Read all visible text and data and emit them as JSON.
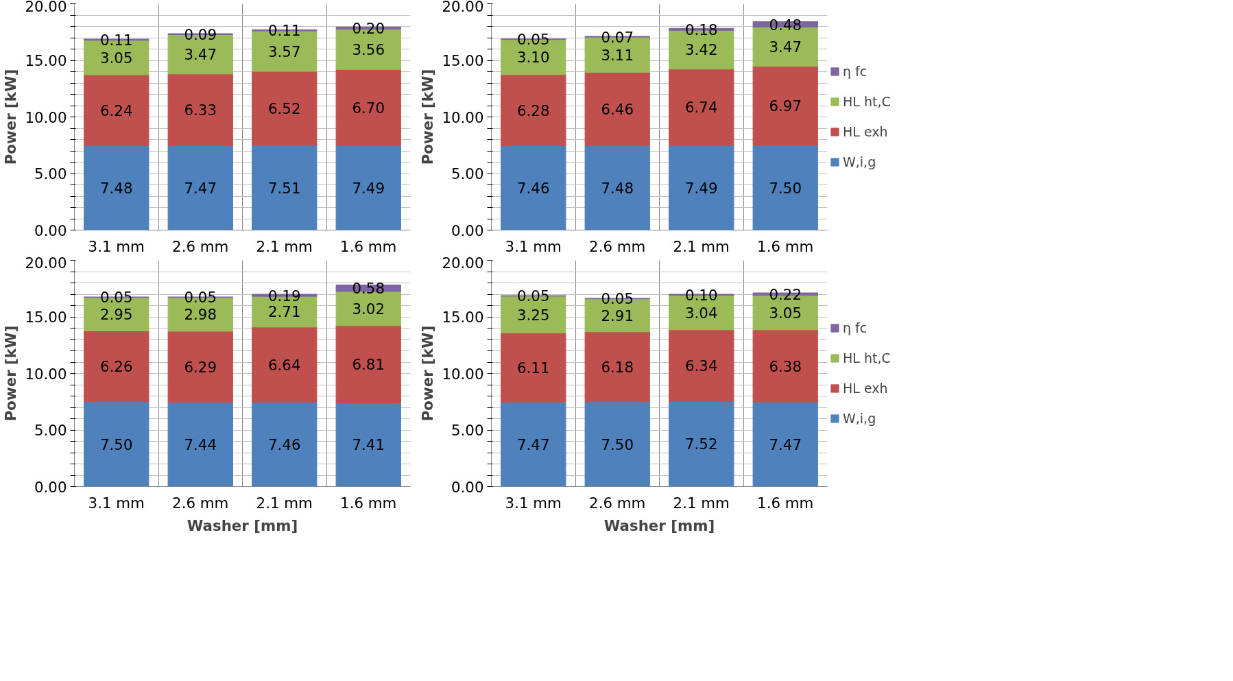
{
  "chart_data": [
    {
      "type": "bar",
      "stacked": true,
      "grid": true,
      "ylabel": "Power [kW]",
      "categories": [
        "3.1 mm",
        "2.6 mm",
        "2.1 mm",
        "1.6 mm"
      ],
      "ylim": [
        0,
        20
      ],
      "yticks": [
        {
          "value": 0,
          "label": "0.00"
        },
        {
          "value": 1,
          "label": null
        },
        {
          "value": 2,
          "label": null
        },
        {
          "value": 3,
          "label": null
        },
        {
          "value": 4,
          "label": null
        },
        {
          "value": 5,
          "label": "5.00"
        },
        {
          "value": 6,
          "label": null
        },
        {
          "value": 7,
          "label": null
        },
        {
          "value": 8,
          "label": null
        },
        {
          "value": 9,
          "label": null
        },
        {
          "value": 10,
          "label": "10.00"
        },
        {
          "value": 11,
          "label": null
        },
        {
          "value": 12,
          "label": null
        },
        {
          "value": 13,
          "label": null
        },
        {
          "value": 14,
          "label": null
        },
        {
          "value": 15,
          "label": "15.00"
        },
        {
          "value": 16,
          "label": null
        },
        {
          "value": 17,
          "label": null
        },
        {
          "value": 18,
          "label": null
        },
        {
          "value": 19,
          "label": null
        },
        {
          "value": 20,
          "label": "20.00"
        }
      ],
      "series": [
        {
          "color": "#4f81bd",
          "values": [
            7.48,
            7.47,
            7.51,
            7.49
          ],
          "value_labels": [
            "7.48",
            "7.47",
            "7.51",
            "7.49"
          ]
        },
        {
          "color": "#c0504d",
          "values": [
            6.24,
            6.33,
            6.52,
            6.7
          ],
          "value_labels": [
            "6.24",
            "6.33",
            "6.52",
            "6.70"
          ]
        },
        {
          "color": "#9bbb59",
          "values": [
            3.05,
            3.47,
            3.57,
            3.56
          ],
          "value_labels": [
            "3.05",
            "3.47",
            "3.57",
            "3.56"
          ]
        },
        {
          "color": "#8064a2",
          "values": [
            0.11,
            0.09,
            0.11,
            0.2
          ],
          "value_labels": [
            "0.11",
            "0.09",
            "0.11",
            "0.20"
          ]
        }
      ]
    },
    {
      "type": "bar",
      "stacked": true,
      "grid": true,
      "legend": "right",
      "ylabel": "Power [kW]",
      "categories": [
        "3.1 mm",
        "2.6 mm",
        "2.1 mm",
        "1.6 mm"
      ],
      "ylim": [
        0,
        20
      ],
      "yticks": [
        {
          "value": 0,
          "label": "0.00"
        },
        {
          "value": 1,
          "label": null
        },
        {
          "value": 2,
          "label": null
        },
        {
          "value": 3,
          "label": null
        },
        {
          "value": 4,
          "label": null
        },
        {
          "value": 5,
          "label": "5.00"
        },
        {
          "value": 6,
          "label": null
        },
        {
          "value": 7,
          "label": null
        },
        {
          "value": 8,
          "label": null
        },
        {
          "value": 9,
          "label": null
        },
        {
          "value": 10,
          "label": "10.00"
        },
        {
          "value": 11,
          "label": null
        },
        {
          "value": 12,
          "label": null
        },
        {
          "value": 13,
          "label": null
        },
        {
          "value": 14,
          "label": null
        },
        {
          "value": 15,
          "label": "15.00"
        },
        {
          "value": 16,
          "label": null
        },
        {
          "value": 17,
          "label": null
        },
        {
          "value": 18,
          "label": null
        },
        {
          "value": 19,
          "label": null
        },
        {
          "value": 20,
          "label": "20.00"
        }
      ],
      "series": [
        {
          "name": "W,i,g",
          "color": "#4f81bd",
          "values": [
            7.46,
            7.48,
            7.49,
            7.5
          ],
          "value_labels": [
            "7.46",
            "7.48",
            "7.49",
            "7.50"
          ]
        },
        {
          "name": "HL exh",
          "color": "#c0504d",
          "values": [
            6.28,
            6.46,
            6.74,
            6.97
          ],
          "value_labels": [
            "6.28",
            "6.46",
            "6.74",
            "6.97"
          ]
        },
        {
          "name": "HL ht,C",
          "color": "#9bbb59",
          "values": [
            3.1,
            3.11,
            3.42,
            3.47
          ],
          "value_labels": [
            "3.10",
            "3.11",
            "3.42",
            "3.47"
          ]
        },
        {
          "name": "η fc",
          "color": "#8064a2",
          "values": [
            0.05,
            0.07,
            0.18,
            0.48
          ],
          "value_labels": [
            "0.05",
            "0.07",
            "0.18",
            "0.48"
          ]
        }
      ]
    },
    {
      "type": "bar",
      "stacked": true,
      "grid": true,
      "ylabel": "Power [kW]",
      "xlabel": "Washer [mm]",
      "categories": [
        "3.1 mm",
        "2.6 mm",
        "2.1 mm",
        "1.6 mm"
      ],
      "ylim": [
        0,
        20
      ],
      "yticks": [
        {
          "value": 0,
          "label": "0.00"
        },
        {
          "value": 1,
          "label": null
        },
        {
          "value": 2,
          "label": null
        },
        {
          "value": 3,
          "label": null
        },
        {
          "value": 4,
          "label": null
        },
        {
          "value": 5,
          "label": "5.00"
        },
        {
          "value": 6,
          "label": null
        },
        {
          "value": 7,
          "label": null
        },
        {
          "value": 8,
          "label": null
        },
        {
          "value": 9,
          "label": null
        },
        {
          "value": 10,
          "label": "10.00"
        },
        {
          "value": 11,
          "label": null
        },
        {
          "value": 12,
          "label": null
        },
        {
          "value": 13,
          "label": null
        },
        {
          "value": 14,
          "label": null
        },
        {
          "value": 15,
          "label": "15.00"
        },
        {
          "value": 16,
          "label": null
        },
        {
          "value": 17,
          "label": null
        },
        {
          "value": 18,
          "label": null
        },
        {
          "value": 19,
          "label": null
        },
        {
          "value": 20,
          "label": "20.00"
        }
      ],
      "series": [
        {
          "color": "#4f81bd",
          "values": [
            7.5,
            7.44,
            7.46,
            7.41
          ],
          "value_labels": [
            "7.50",
            "7.44",
            "7.46",
            "7.41"
          ]
        },
        {
          "color": "#c0504d",
          "values": [
            6.26,
            6.29,
            6.64,
            6.81
          ],
          "value_labels": [
            "6.26",
            "6.29",
            "6.64",
            "6.81"
          ]
        },
        {
          "color": "#9bbb59",
          "values": [
            2.95,
            2.98,
            2.71,
            3.02
          ],
          "value_labels": [
            "2.95",
            "2.98",
            "2.71",
            "3.02"
          ]
        },
        {
          "color": "#8064a2",
          "values": [
            0.05,
            0.05,
            0.19,
            0.58
          ],
          "value_labels": [
            "0.05",
            "0.05",
            "0.19",
            "0.58"
          ]
        }
      ]
    },
    {
      "type": "bar",
      "stacked": true,
      "grid": true,
      "legend": "right",
      "ylabel": "Power [kW]",
      "xlabel": "Washer [mm]",
      "categories": [
        "3.1 mm",
        "2.6 mm",
        "2.1 mm",
        "1.6 mm"
      ],
      "ylim": [
        0,
        20
      ],
      "yticks": [
        {
          "value": 0,
          "label": "0.00"
        },
        {
          "value": 1,
          "label": null
        },
        {
          "value": 2,
          "label": null
        },
        {
          "value": 3,
          "label": null
        },
        {
          "value": 4,
          "label": null
        },
        {
          "value": 5,
          "label": "5.00"
        },
        {
          "value": 6,
          "label": null
        },
        {
          "value": 7,
          "label": null
        },
        {
          "value": 8,
          "label": null
        },
        {
          "value": 9,
          "label": null
        },
        {
          "value": 10,
          "label": "10.00"
        },
        {
          "value": 11,
          "label": null
        },
        {
          "value": 12,
          "label": null
        },
        {
          "value": 13,
          "label": null
        },
        {
          "value": 14,
          "label": null
        },
        {
          "value": 15,
          "label": "15.00"
        },
        {
          "value": 16,
          "label": null
        },
        {
          "value": 17,
          "label": null
        },
        {
          "value": 18,
          "label": null
        },
        {
          "value": 19,
          "label": null
        },
        {
          "value": 20,
          "label": "20.00"
        }
      ],
      "series": [
        {
          "name": "W,i,g",
          "color": "#4f81bd",
          "values": [
            7.47,
            7.5,
            7.52,
            7.47
          ],
          "value_labels": [
            "7.47",
            "7.50",
            "7.52",
            "7.47"
          ]
        },
        {
          "name": "HL exh",
          "color": "#c0504d",
          "values": [
            6.11,
            6.18,
            6.34,
            6.38
          ],
          "value_labels": [
            "6.11",
            "6.18",
            "6.34",
            "6.38"
          ]
        },
        {
          "name": "HL ht,C",
          "color": "#9bbb59",
          "values": [
            3.25,
            2.91,
            3.04,
            3.05
          ],
          "value_labels": [
            "3.25",
            "2.91",
            "3.04",
            "3.05"
          ]
        },
        {
          "name": "η fc",
          "color": "#8064a2",
          "values": [
            0.05,
            0.05,
            0.1,
            0.22
          ],
          "value_labels": [
            "0.05",
            "0.05",
            "0.10",
            "0.22"
          ]
        }
      ]
    }
  ]
}
